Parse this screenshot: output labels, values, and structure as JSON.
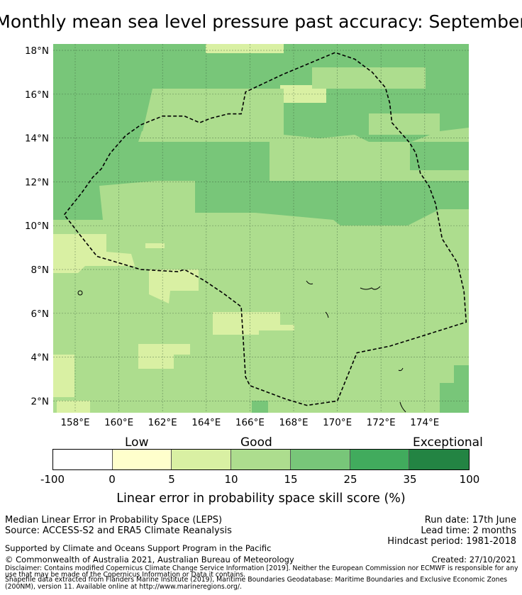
{
  "title": "Monthly mean sea level pressure past accuracy: September",
  "map": {
    "lat_labels": [
      "18°N",
      "16°N",
      "14°N",
      "12°N",
      "10°N",
      "8°N",
      "6°N",
      "4°N",
      "2°N"
    ],
    "lat_values": [
      18,
      16,
      14,
      12,
      10,
      8,
      6,
      4,
      2
    ],
    "lon_labels": [
      "158°E",
      "160°E",
      "162°E",
      "164°E",
      "166°E",
      "168°E",
      "170°E",
      "172°E",
      "174°E"
    ],
    "lon_values": [
      158,
      160,
      162,
      164,
      166,
      168,
      170,
      172,
      174
    ],
    "lon_range": [
      157,
      176
    ],
    "lat_range": [
      1.4,
      18.3
    ],
    "boundary_name": "Marshall Islands EEZ",
    "boundary_lonlat": [
      [
        157.5,
        10.5
      ],
      [
        158.3,
        11.5
      ],
      [
        158.8,
        12.2
      ],
      [
        159.2,
        12.6
      ],
      [
        159.6,
        13.3
      ],
      [
        160.3,
        14.1
      ],
      [
        161.0,
        14.6
      ],
      [
        162.0,
        15.0
      ],
      [
        163.0,
        15.0
      ],
      [
        163.7,
        14.7
      ],
      [
        164.2,
        14.9
      ],
      [
        165.0,
        15.1
      ],
      [
        165.6,
        15.1
      ],
      [
        165.8,
        16.1
      ],
      [
        167.5,
        16.9
      ],
      [
        169.9,
        17.9
      ],
      [
        170.8,
        17.6
      ],
      [
        171.6,
        17.0
      ],
      [
        172.2,
        16.3
      ],
      [
        172.4,
        15.6
      ],
      [
        172.5,
        14.7
      ],
      [
        173.3,
        13.8
      ],
      [
        173.6,
        13.3
      ],
      [
        173.8,
        12.4
      ],
      [
        174.2,
        11.8
      ],
      [
        174.5,
        11.0
      ],
      [
        174.8,
        9.4
      ],
      [
        175.5,
        8.3
      ],
      [
        175.8,
        7.0
      ],
      [
        175.9,
        5.6
      ],
      [
        174.0,
        5.0
      ],
      [
        172.4,
        4.5
      ],
      [
        170.9,
        4.2
      ],
      [
        170.0,
        2.0
      ],
      [
        168.6,
        1.8
      ],
      [
        167.6,
        2.1
      ],
      [
        166.0,
        2.7
      ],
      [
        165.8,
        3.1
      ],
      [
        165.6,
        6.3
      ],
      [
        164.8,
        6.9
      ],
      [
        163.9,
        7.5
      ],
      [
        163.0,
        8.0
      ],
      [
        162.7,
        7.9
      ],
      [
        161.0,
        8.0
      ],
      [
        160.0,
        8.3
      ],
      [
        159.0,
        8.6
      ],
      [
        158.2,
        9.6
      ],
      [
        157.5,
        10.5
      ]
    ]
  },
  "legend": {
    "categories": [
      "Low",
      "Good",
      "Exceptional"
    ],
    "bins": [
      {
        "from": -100,
        "to": 0,
        "color": "#ffffff"
      },
      {
        "from": 0,
        "to": 5,
        "color": "#ffffcc"
      },
      {
        "from": 5,
        "to": 10,
        "color": "#d9f0a3"
      },
      {
        "from": 10,
        "to": 15,
        "color": "#addd8e"
      },
      {
        "from": 15,
        "to": 25,
        "color": "#78c679"
      },
      {
        "from": 25,
        "to": 35,
        "color": "#41ab5d"
      },
      {
        "from": 35,
        "to": 100,
        "color": "#238443"
      }
    ],
    "tick_labels": [
      "-100",
      "0",
      "5",
      "10",
      "15",
      "25",
      "35",
      "100"
    ],
    "label": "Linear error in probability space skill score (%)"
  },
  "footer": {
    "left1": "Median Linear Error in Probability Space (LEPS)",
    "left2": "Source: ACCESS-S2 and ERA5 Climate Reanalysis",
    "right1": "Run date: 17th June",
    "right2": "Lead time: 2 months",
    "right3": "Hindcast period: 1981-2018",
    "support": "Supported by Climate and Oceans Support Program in the Pacific",
    "copyright": "© Commonwealth of Australia 2021, Australian Bureau of Meteorology",
    "created": "Created: 27/10/2021",
    "disclaimer1": "Disclaimer: Contains modified Copernicus Climate Change Service Information [2019]. Neither the European Commission nor ECMWF is responsible for any",
    "disclaimer2": "use that may be made of the Copernicus Information or Data it contains.",
    "shapefile1": "Shapefile data extracted from Flanders Marine Institute (2019), Maritime Boundaries Geodatabase: Maritime Boundaries and Exclusive Economic Zones",
    "shapefile2": "(200NM), version 11. Available online at http://www.marineregions.org/."
  }
}
